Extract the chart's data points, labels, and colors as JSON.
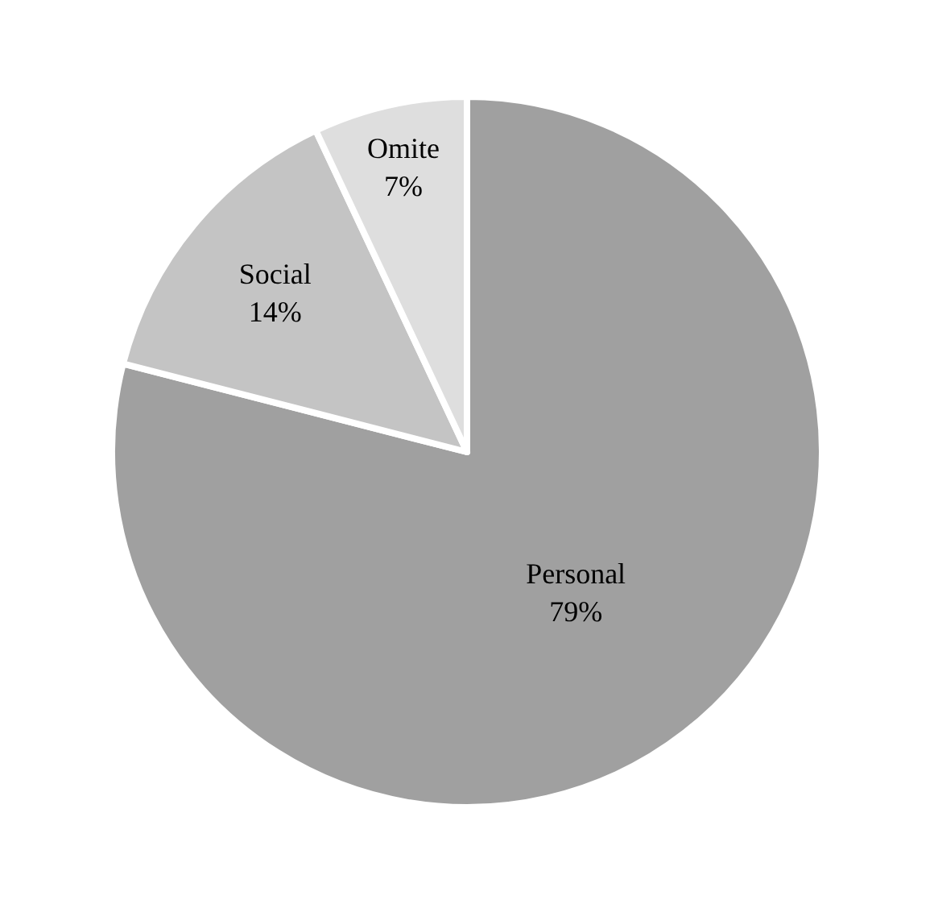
{
  "chart_data": {
    "type": "pie",
    "categories": [
      "Personal",
      "Social",
      "Omite"
    ],
    "values": [
      79,
      14,
      7
    ],
    "colors": [
      "#a0a0a0",
      "#c4c4c4",
      "#dedede"
    ],
    "value_labels": [
      "79%",
      "14%",
      "7%"
    ],
    "legend": false
  }
}
